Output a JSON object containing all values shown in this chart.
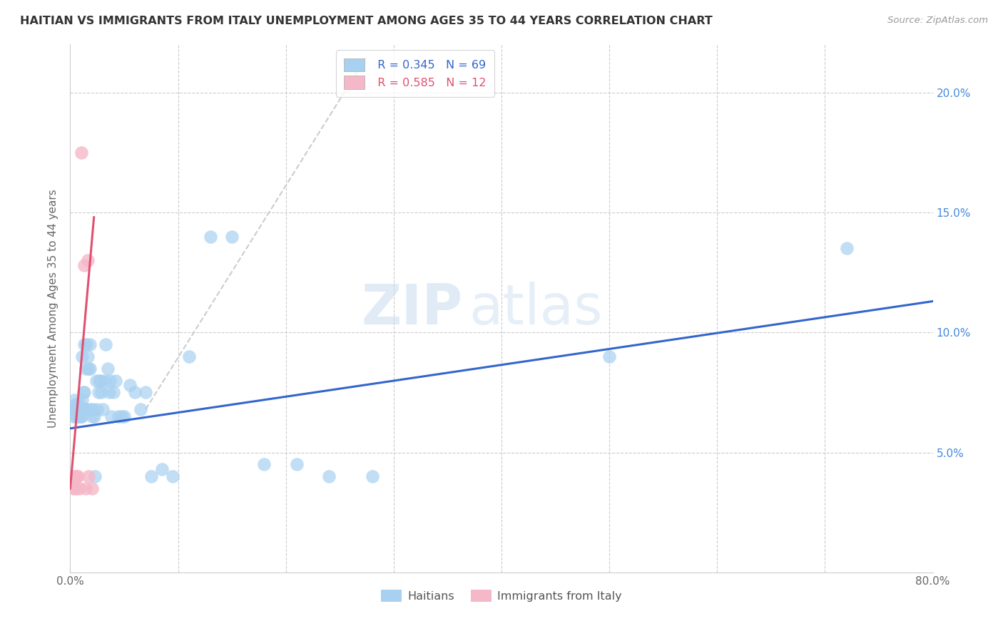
{
  "title": "HAITIAN VS IMMIGRANTS FROM ITALY UNEMPLOYMENT AMONG AGES 35 TO 44 YEARS CORRELATION CHART",
  "source": "Source: ZipAtlas.com",
  "ylabel": "Unemployment Among Ages 35 to 44 years",
  "xlim": [
    0.0,
    0.8
  ],
  "ylim": [
    0.0,
    0.22
  ],
  "ytick_vals": [
    0.05,
    0.1,
    0.15,
    0.2
  ],
  "ytick_labels": [
    "5.0%",
    "10.0%",
    "15.0%",
    "20.0%"
  ],
  "legend_r1": "R = 0.345",
  "legend_n1": "N = 69",
  "legend_r2": "R = 0.585",
  "legend_n2": "N = 12",
  "color_blue": "#A8D0F0",
  "color_pink": "#F5B8C8",
  "color_line_blue": "#3366CC",
  "color_line_pink": "#E05070",
  "watermark_zip": "ZIP",
  "watermark_atlas": "atlas",
  "haitians_x": [
    0.002,
    0.003,
    0.004,
    0.005,
    0.005,
    0.006,
    0.006,
    0.007,
    0.007,
    0.008,
    0.008,
    0.009,
    0.009,
    0.01,
    0.01,
    0.01,
    0.011,
    0.011,
    0.012,
    0.012,
    0.013,
    0.013,
    0.014,
    0.014,
    0.015,
    0.015,
    0.016,
    0.017,
    0.018,
    0.018,
    0.019,
    0.02,
    0.021,
    0.022,
    0.023,
    0.024,
    0.025,
    0.026,
    0.027,
    0.028,
    0.029,
    0.03,
    0.032,
    0.033,
    0.035,
    0.036,
    0.037,
    0.038,
    0.04,
    0.042,
    0.045,
    0.048,
    0.05,
    0.055,
    0.06,
    0.065,
    0.07,
    0.075,
    0.085,
    0.095,
    0.11,
    0.13,
    0.15,
    0.18,
    0.21,
    0.24,
    0.28,
    0.5,
    0.72
  ],
  "haitians_y": [
    0.068,
    0.065,
    0.072,
    0.068,
    0.07,
    0.065,
    0.07,
    0.065,
    0.068,
    0.065,
    0.07,
    0.065,
    0.068,
    0.065,
    0.065,
    0.068,
    0.072,
    0.09,
    0.075,
    0.068,
    0.075,
    0.095,
    0.068,
    0.085,
    0.095,
    0.068,
    0.09,
    0.085,
    0.085,
    0.095,
    0.068,
    0.065,
    0.068,
    0.065,
    0.04,
    0.08,
    0.068,
    0.075,
    0.08,
    0.08,
    0.075,
    0.068,
    0.08,
    0.095,
    0.085,
    0.075,
    0.08,
    0.065,
    0.075,
    0.08,
    0.065,
    0.065,
    0.065,
    0.078,
    0.075,
    0.068,
    0.075,
    0.04,
    0.043,
    0.04,
    0.09,
    0.14,
    0.14,
    0.045,
    0.045,
    0.04,
    0.04,
    0.09,
    0.135
  ],
  "italy_x": [
    0.003,
    0.004,
    0.005,
    0.006,
    0.007,
    0.008,
    0.01,
    0.013,
    0.014,
    0.016,
    0.017,
    0.02
  ],
  "italy_y": [
    0.035,
    0.04,
    0.035,
    0.04,
    0.04,
    0.035,
    0.175,
    0.128,
    0.035,
    0.13,
    0.04,
    0.035
  ],
  "blue_line_x": [
    0.0,
    0.8
  ],
  "blue_line_y": [
    0.06,
    0.113
  ],
  "pink_line_x": [
    0.0,
    0.022
  ],
  "pink_line_y": [
    0.035,
    0.148
  ],
  "gray_line_x": [
    0.07,
    0.275
  ],
  "gray_line_y": [
    0.068,
    0.215
  ]
}
